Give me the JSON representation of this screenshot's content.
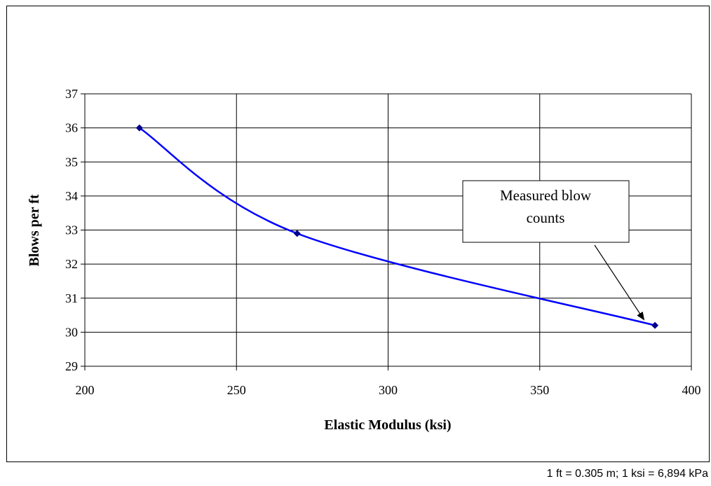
{
  "chart_data": {
    "type": "line",
    "xlabel": "Elastic Modulus (ksi)",
    "ylabel": "Blows per ft",
    "xlim": [
      200,
      400
    ],
    "ylim": [
      29,
      37
    ],
    "xticks": [
      200,
      250,
      300,
      350,
      400
    ],
    "yticks": [
      29,
      30,
      31,
      32,
      33,
      34,
      35,
      36,
      37
    ],
    "grid": true,
    "series": [
      {
        "color": "#0000ff",
        "smooth": true,
        "x": [
          218,
          270,
          388
        ],
        "y": [
          36.0,
          32.9,
          30.2
        ]
      }
    ],
    "annotations": [
      {
        "text_lines": [
          "Measured blow",
          "counts"
        ],
        "points_to": [
          388,
          30.2
        ]
      }
    ]
  },
  "footnote": "1 ft = 0.305 m; 1 ksi = 6,894 kPa"
}
